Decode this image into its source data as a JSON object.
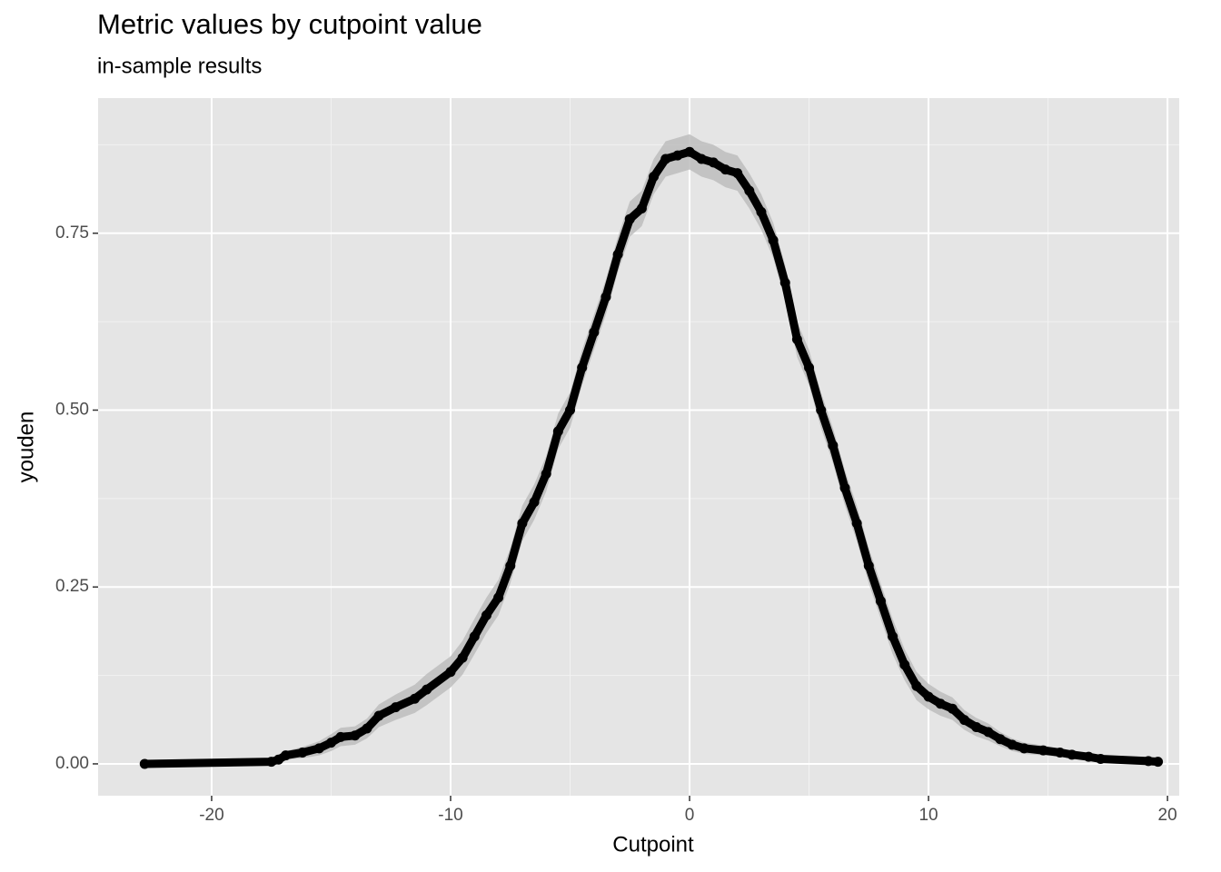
{
  "chart_data": {
    "type": "line",
    "title": "Metric values by cutpoint value",
    "subtitle": "in-sample results",
    "x_label": "Cutpoint",
    "y_label": "youden",
    "xlim": [
      -24.75,
      20.49
    ],
    "ylim": [
      -0.045,
      0.941
    ],
    "xticks": [
      -20,
      -10,
      0,
      10,
      20
    ],
    "yticks": [
      {
        "value": 0,
        "label": "0.00"
      },
      {
        "value": 0.25,
        "label": "0.25"
      },
      {
        "value": 0.5,
        "label": "0.50"
      },
      {
        "value": 0.75,
        "label": "0.75"
      }
    ],
    "minor_xticks": [
      -15,
      -5,
      5,
      15
    ],
    "minor_yticks": [
      0.125,
      0.375,
      0.625,
      0.875
    ],
    "grid": true,
    "color": "#000000",
    "x": [
      -22.8,
      -17.5,
      -17.2,
      -16.9,
      -16.2,
      -15.5,
      -15.0,
      -14.6,
      -14.0,
      -13.5,
      -13,
      -12.3,
      -11.5,
      -11,
      -10,
      -9.5,
      -9,
      -8.5,
      -8,
      -7.5,
      -7,
      -6.5,
      -6,
      -5.5,
      -5,
      -4.5,
      -4,
      -3.5,
      -3,
      -2.5,
      -2,
      -1.5,
      -1,
      -0.5,
      0,
      0.5,
      1,
      1.5,
      2,
      2.5,
      3,
      3.5,
      4,
      4.5,
      5,
      5.5,
      6,
      6.5,
      7,
      7.5,
      8,
      8.5,
      9,
      9.5,
      10,
      10.5,
      11,
      11.5,
      12,
      12.5,
      13,
      13.5,
      14,
      14.8,
      15.5,
      16,
      16.7,
      17.2,
      19.2,
      19.6
    ],
    "values": [
      0,
      0.003,
      0.006,
      0.012,
      0.016,
      0.022,
      0.03,
      0.038,
      0.04,
      0.05,
      0.068,
      0.08,
      0.092,
      0.105,
      0.13,
      0.15,
      0.18,
      0.21,
      0.235,
      0.28,
      0.34,
      0.37,
      0.41,
      0.47,
      0.5,
      0.56,
      0.61,
      0.66,
      0.72,
      0.77,
      0.785,
      0.83,
      0.855,
      0.86,
      0.865,
      0.855,
      0.85,
      0.84,
      0.835,
      0.81,
      0.78,
      0.74,
      0.68,
      0.6,
      0.56,
      0.5,
      0.45,
      0.39,
      0.34,
      0.28,
      0.23,
      0.18,
      0.14,
      0.11,
      0.095,
      0.085,
      0.078,
      0.062,
      0.052,
      0.045,
      0.035,
      0.027,
      0.022,
      0.019,
      0.016,
      0.013,
      0.01,
      0.007,
      0.004,
      0.003
    ],
    "band": {
      "color": "#bdbdbd",
      "lower": [
        0,
        0.002,
        0.003,
        0.006,
        0.008,
        0.012,
        0.018,
        0.025,
        0.027,
        0.036,
        0.052,
        0.062,
        0.072,
        0.083,
        0.108,
        0.126,
        0.155,
        0.185,
        0.21,
        0.255,
        0.315,
        0.345,
        0.385,
        0.445,
        0.475,
        0.535,
        0.585,
        0.635,
        0.695,
        0.745,
        0.76,
        0.805,
        0.83,
        0.835,
        0.84,
        0.83,
        0.825,
        0.815,
        0.81,
        0.785,
        0.755,
        0.715,
        0.655,
        0.575,
        0.535,
        0.475,
        0.425,
        0.365,
        0.315,
        0.255,
        0.205,
        0.155,
        0.118,
        0.09,
        0.077,
        0.068,
        0.062,
        0.048,
        0.039,
        0.033,
        0.025,
        0.018,
        0.014,
        0.012,
        0.01,
        0.008,
        0.006,
        0.004,
        0.003,
        0.003
      ],
      "upper": [
        0,
        0.004,
        0.009,
        0.018,
        0.024,
        0.032,
        0.042,
        0.051,
        0.053,
        0.064,
        0.084,
        0.098,
        0.112,
        0.127,
        0.152,
        0.174,
        0.205,
        0.235,
        0.26,
        0.305,
        0.365,
        0.395,
        0.435,
        0.495,
        0.525,
        0.585,
        0.635,
        0.685,
        0.745,
        0.795,
        0.81,
        0.855,
        0.88,
        0.885,
        0.89,
        0.88,
        0.875,
        0.865,
        0.86,
        0.835,
        0.805,
        0.765,
        0.705,
        0.625,
        0.585,
        0.525,
        0.475,
        0.415,
        0.365,
        0.305,
        0.255,
        0.205,
        0.162,
        0.13,
        0.113,
        0.102,
        0.094,
        0.076,
        0.065,
        0.057,
        0.045,
        0.036,
        0.03,
        0.026,
        0.022,
        0.018,
        0.014,
        0.01,
        0.005,
        0.003
      ]
    }
  }
}
